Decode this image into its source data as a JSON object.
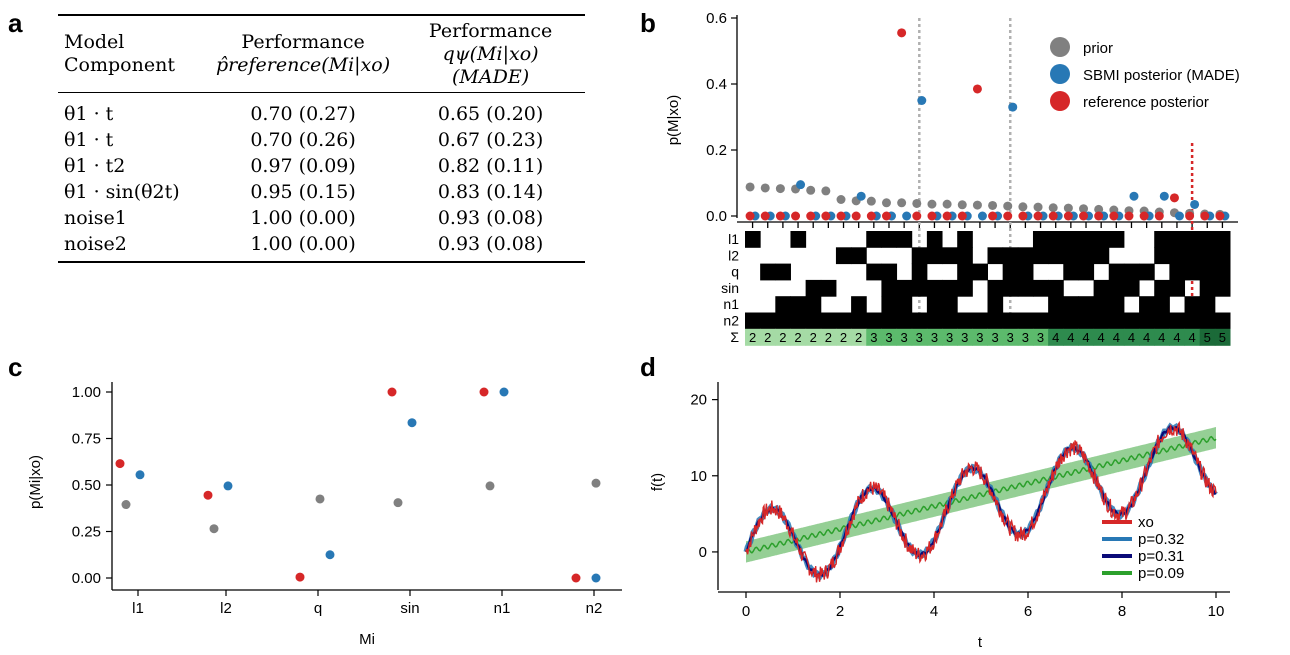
{
  "panel_letters": {
    "a": "a",
    "b": "b",
    "c": "c",
    "d": "d"
  },
  "table_a": {
    "headers": [
      "Model Component",
      "Performance",
      "Performance"
    ],
    "header_sub": [
      "",
      "p̂reference(Mi|xo)",
      "qψ(Mi|xo) (MADE)"
    ],
    "rows": [
      {
        "component": "θ1 · t",
        "reference": "0.70 (0.27)",
        "made": "0.65 (0.20)"
      },
      {
        "component": "θ1 · t",
        "reference": "0.70 (0.26)",
        "made": "0.67 (0.23)"
      },
      {
        "component": "θ1 · t2",
        "reference": "0.97 (0.09)",
        "made": "0.82 (0.11)"
      },
      {
        "component": "θ1 · sin(θ2t)",
        "reference": "0.95 (0.15)",
        "made": "0.83 (0.14)"
      },
      {
        "component": "noise1",
        "reference": "1.00 (0.00)",
        "made": "0.93 (0.08)"
      },
      {
        "component": "noise2",
        "reference": "1.00 (0.00)",
        "made": "0.93 (0.08)"
      }
    ]
  },
  "colors": {
    "prior": "#808080",
    "sbmi": "#2878b5",
    "reference": "#d62728",
    "green": "#2ca02c",
    "navy": "#0a0a78",
    "grid_dotted": "#b0b0b0"
  },
  "chart_data": [
    {
      "id": "b",
      "type": "scatter",
      "ylabel": "p(M|xo)",
      "ylim": [
        0,
        0.6
      ],
      "yticks": [
        "0.0",
        "0.2",
        "0.4",
        "0.6"
      ],
      "legend": [
        "prior",
        "SBMI posterior (MADE)",
        "reference posterior"
      ],
      "legend_position": "top-right",
      "n_models": 32,
      "prior": [
        0.088,
        0.085,
        0.083,
        0.082,
        0.078,
        0.076,
        0.05,
        0.046,
        0.045,
        0.04,
        0.04,
        0.038,
        0.036,
        0.036,
        0.034,
        0.033,
        0.032,
        0.03,
        0.028,
        0.027,
        0.025,
        0.024,
        0.022,
        0.02,
        0.018,
        0.016,
        0.015,
        0.012,
        0.01,
        0.008,
        0.006,
        0.005
      ],
      "sbmi": [
        0,
        0,
        0,
        0.095,
        0,
        0,
        0,
        0.06,
        0,
        0,
        0,
        0.35,
        0,
        0,
        0,
        0,
        0,
        0.33,
        0,
        0,
        0,
        0,
        0,
        0,
        0,
        0.06,
        0,
        0.06,
        0,
        0.035,
        0,
        0
      ],
      "reference": [
        0,
        0,
        0,
        0,
        0,
        0,
        0,
        0,
        0,
        0,
        0.555,
        0,
        0,
        0,
        0,
        0.385,
        0,
        0,
        0,
        0,
        0,
        0,
        0,
        0,
        0,
        0,
        0,
        0,
        0.055,
        0,
        0,
        0
      ],
      "markers_gray_dotted": [
        11,
        17
      ],
      "markers_red_dotted": [
        29
      ],
      "matrix_rows": [
        "l1",
        "l2",
        "q",
        "sin",
        "n1",
        "n2",
        "Σ"
      ],
      "matrix": [
        [
          1,
          0,
          0,
          1,
          0,
          0,
          0,
          0,
          1,
          1,
          1,
          0,
          1,
          0,
          1,
          0,
          0,
          0,
          0,
          1,
          1,
          1,
          1,
          1,
          1,
          0,
          0,
          1,
          1,
          1,
          1,
          1
        ],
        [
          0,
          0,
          0,
          0,
          0,
          0,
          1,
          1,
          0,
          0,
          0,
          1,
          1,
          1,
          1,
          0,
          1,
          1,
          1,
          1,
          1,
          1,
          1,
          1,
          0,
          0,
          0,
          1,
          1,
          1,
          1,
          1
        ],
        [
          0,
          1,
          1,
          0,
          0,
          0,
          0,
          0,
          1,
          1,
          0,
          1,
          0,
          0,
          1,
          1,
          0,
          1,
          1,
          0,
          0,
          1,
          1,
          0,
          1,
          1,
          1,
          0,
          1,
          1,
          1,
          1
        ],
        [
          0,
          0,
          0,
          0,
          1,
          1,
          0,
          0,
          0,
          1,
          1,
          1,
          1,
          1,
          1,
          0,
          1,
          1,
          1,
          1,
          1,
          0,
          0,
          1,
          1,
          1,
          0,
          1,
          1,
          0,
          1,
          1
        ],
        [
          0,
          0,
          1,
          1,
          1,
          0,
          0,
          1,
          0,
          1,
          1,
          0,
          1,
          1,
          0,
          0,
          1,
          0,
          0,
          0,
          1,
          1,
          1,
          1,
          1,
          0,
          1,
          1,
          0,
          1,
          1,
          0
        ],
        [
          1,
          1,
          1,
          1,
          1,
          1,
          1,
          1,
          1,
          1,
          1,
          1,
          1,
          1,
          1,
          1,
          1,
          1,
          1,
          1,
          1,
          1,
          1,
          1,
          1,
          1,
          1,
          1,
          1,
          1,
          1,
          1
        ]
      ],
      "sum_labels": [
        "2",
        "2",
        "2",
        "2",
        "2",
        "2",
        "2",
        "2",
        "3",
        "3",
        "3",
        "3",
        "3",
        "3",
        "3",
        "3",
        "3",
        "3",
        "3",
        "3",
        "4",
        "4",
        "4",
        "4",
        "4",
        "4",
        "4",
        "4",
        "4",
        "4",
        "5",
        "5"
      ]
    },
    {
      "id": "c",
      "type": "scatter",
      "xlabel": "Mi",
      "ylabel": "p(Mi|xo)",
      "categories": [
        "l1",
        "l2",
        "q",
        "sin",
        "n1",
        "n2"
      ],
      "ylim": [
        0,
        1
      ],
      "yticks": [
        "0.00",
        "0.25",
        "0.50",
        "0.75",
        "1.00"
      ],
      "series": [
        {
          "name": "reference",
          "values": [
            0.615,
            0.445,
            0.005,
            1.0,
            1.0,
            0.0
          ]
        },
        {
          "name": "sbmi",
          "values": [
            0.555,
            0.495,
            0.125,
            0.835,
            1.0,
            0.0
          ]
        },
        {
          "name": "prior",
          "values": [
            0.395,
            0.265,
            0.425,
            0.405,
            0.495,
            0.51
          ]
        }
      ]
    },
    {
      "id": "d",
      "type": "line",
      "xlabel": "t",
      "ylabel": "f(t)",
      "xlim": [
        0,
        10
      ],
      "ylim": [
        -5,
        21
      ],
      "xticks": [
        "0",
        "2",
        "4",
        "6",
        "8",
        "10"
      ],
      "yticks": [
        "0",
        "10",
        "20"
      ],
      "legend": [
        "xo",
        "p=0.32",
        "p=0.31",
        "p=0.09"
      ],
      "legend_position": "bottom-right",
      "model_sin": {
        "trend": 1.25,
        "amp": 5.0,
        "omega": 2.95
      },
      "model_linear": {
        "slope": 1.5,
        "band": 1.4
      }
    }
  ]
}
